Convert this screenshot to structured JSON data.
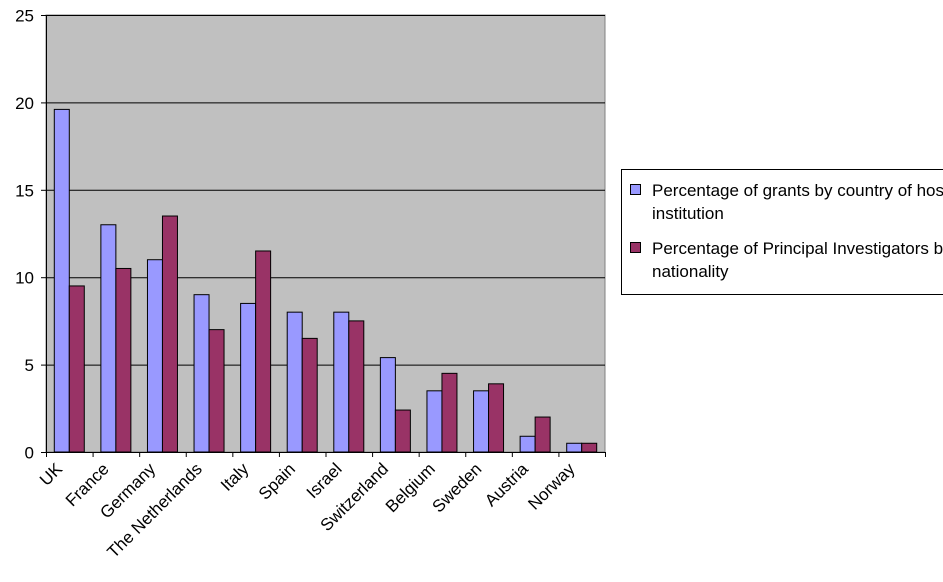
{
  "chart_data": {
    "type": "bar",
    "categories": [
      "UK",
      "France",
      "Germany",
      "The Netherlands",
      "Italy",
      "Spain",
      "Israel",
      "Switzerland",
      "Belgium",
      "Sweden",
      "Austria",
      "Norway"
    ],
    "series": [
      {
        "name": "Percentage of grants by country of host institution",
        "color": "#9999ff",
        "values": [
          19.6,
          13,
          11,
          9,
          8.5,
          8,
          8,
          5.4,
          3.5,
          3.5,
          0.9,
          0.5
        ]
      },
      {
        "name": "Percentage of Principal Investigators by nationality",
        "color": "#993366",
        "values": [
          9.5,
          10.5,
          13.5,
          7,
          11.5,
          6.5,
          7.5,
          2.4,
          4.5,
          3.9,
          2,
          0.5
        ]
      }
    ],
    "ylim": [
      0,
      25
    ],
    "yticks": [
      0,
      5,
      10,
      15,
      20,
      25
    ],
    "grid": true,
    "plot_background": "#c0c0c0",
    "legend_position": "right",
    "title": "",
    "xlabel": "",
    "ylabel": ""
  }
}
